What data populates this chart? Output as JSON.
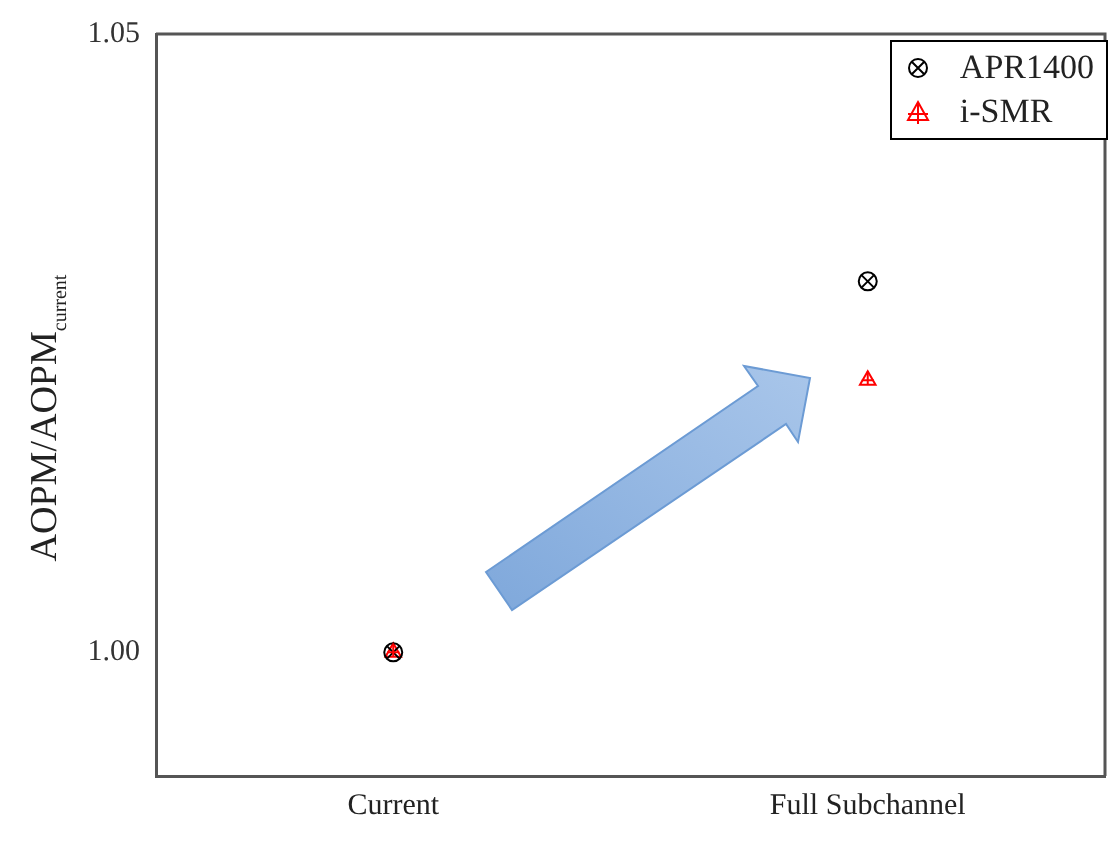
{
  "chart_data": {
    "type": "scatter",
    "ylabel": "AOPM/AOPM$_{current}$",
    "categories": [
      "Current",
      "Full Subchannel"
    ],
    "series": [
      {
        "name": "APR1400",
        "color": "#000000",
        "marker": "circle",
        "values": [
          1.0,
          1.03
        ]
      },
      {
        "name": "i-SMR",
        "color": "#ff0000",
        "marker": "triangle",
        "values": [
          1.0,
          1.022
        ]
      }
    ],
    "ylim": [
      0.99,
      1.05
    ],
    "yticks": [
      {
        "value": 0.99,
        "label": null
      },
      {
        "value": 1.0,
        "label": "1.00"
      },
      {
        "value": 1.05,
        "label": "1.05"
      }
    ],
    "grid": false,
    "legend": "top right"
  }
}
